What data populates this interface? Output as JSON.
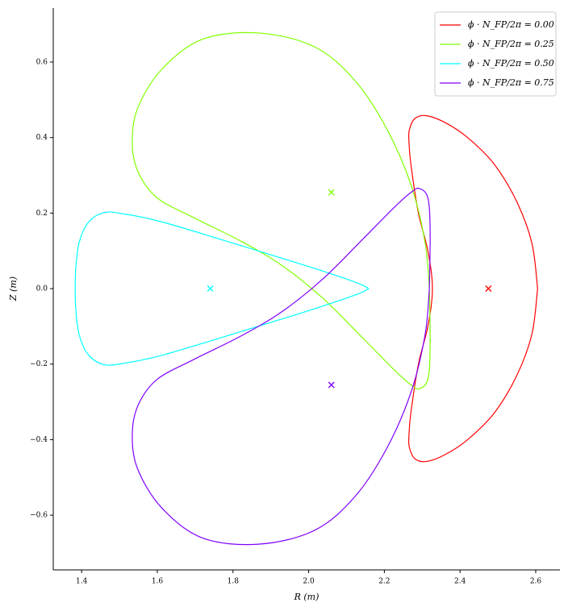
{
  "chart_data": {
    "type": "line",
    "xlabel": "R (m)",
    "ylabel": "Z (m)",
    "xlim": [
      1.325,
      2.664
    ],
    "ylim": [
      -0.745,
      0.743
    ],
    "xticks": [
      1.4,
      1.6,
      1.8,
      {
        "value": 2.0,
        "label": "2.0"
      },
      2.2,
      2.4,
      2.6
    ],
    "yticks": [
      {
        "value": -0.6,
        "label": "−0.6"
      },
      {
        "value": -0.4,
        "label": "−0.4"
      },
      {
        "value": -0.2,
        "label": "−0.2"
      },
      {
        "value": 0,
        "label": "0.0"
      },
      0.2,
      0.4,
      0.6
    ],
    "legend": "upper right",
    "series": [
      {
        "name": "ϕ · N_FP/2π = 0.00",
        "color": "#ff0000",
        "x": [
          2.605,
          2.59,
          2.55,
          2.49,
          2.42,
          2.36,
          2.31,
          2.28,
          2.266,
          2.265,
          2.27,
          2.29,
          2.315,
          2.327,
          2.315,
          2.29,
          2.27,
          2.265,
          2.266,
          2.28,
          2.31,
          2.36,
          2.42,
          2.49,
          2.55,
          2.59,
          2.605
        ],
        "values": [
          0,
          0.12,
          0.23,
          0.33,
          0.4,
          0.44,
          0.458,
          0.45,
          0.42,
          0.39,
          0.33,
          0.2,
          0.1,
          0,
          -0.1,
          -0.2,
          -0.33,
          -0.39,
          -0.42,
          -0.45,
          -0.458,
          -0.44,
          -0.4,
          -0.33,
          -0.23,
          -0.12,
          0
        ],
        "center_x": 2.475,
        "center_y": 0
      },
      {
        "name": "ϕ · N_FP/2π = 0.25",
        "color": "#80ff00",
        "x": [
          2.319,
          2.308,
          2.272,
          2.208,
          2.123,
          2.016,
          1.867,
          1.718,
          1.611,
          1.547,
          1.534,
          1.551,
          1.6,
          1.696,
          1.824,
          1.931,
          2.038,
          2.144,
          2.229,
          2.272,
          2.293,
          2.315,
          2.321,
          2.319
        ],
        "values": [
          0,
          0.12,
          0.27,
          0.42,
          0.55,
          0.64,
          0.677,
          0.66,
          0.58,
          0.475,
          0.38,
          0.305,
          0.24,
          0.188,
          0.124,
          0.06,
          -0.026,
          -0.132,
          -0.218,
          -0.256,
          -0.265,
          -0.24,
          -0.154,
          0
        ],
        "center_x": 2.06,
        "center_y": 0.255
      },
      {
        "name": "ϕ · N_FP/2π = 0.50",
        "color": "#00ffff",
        "x": [
          2.159,
          2.123,
          1.995,
          1.824,
          1.611,
          1.504,
          1.458,
          1.419,
          1.394,
          1.385,
          1.383,
          1.385,
          1.394,
          1.419,
          1.458,
          1.504,
          1.611,
          1.824,
          1.995,
          2.123,
          2.159
        ],
        "values": [
          0,
          0.017,
          0.06,
          0.113,
          0.177,
          0.199,
          0.201,
          0.177,
          0.124,
          0.06,
          0,
          -0.06,
          -0.124,
          -0.177,
          -0.201,
          -0.199,
          -0.177,
          -0.113,
          -0.06,
          -0.017,
          0
        ],
        "center_x": 1.74,
        "center_y": 0
      },
      {
        "name": "ϕ · N_FP/2π = 0.75",
        "color": "#8000ff",
        "x": [
          2.319,
          2.308,
          2.272,
          2.208,
          2.123,
          2.016,
          1.867,
          1.718,
          1.611,
          1.547,
          1.534,
          1.551,
          1.6,
          1.696,
          1.824,
          1.931,
          2.038,
          2.144,
          2.229,
          2.272,
          2.293,
          2.315,
          2.321,
          2.319
        ],
        "values": [
          0,
          -0.12,
          -0.27,
          -0.42,
          -0.55,
          -0.64,
          -0.677,
          -0.66,
          -0.58,
          -0.475,
          -0.38,
          -0.305,
          -0.24,
          -0.188,
          -0.124,
          -0.06,
          0.026,
          0.132,
          0.218,
          0.256,
          0.265,
          0.24,
          0.154,
          0
        ],
        "center_x": 2.06,
        "center_y": -0.255
      }
    ]
  }
}
